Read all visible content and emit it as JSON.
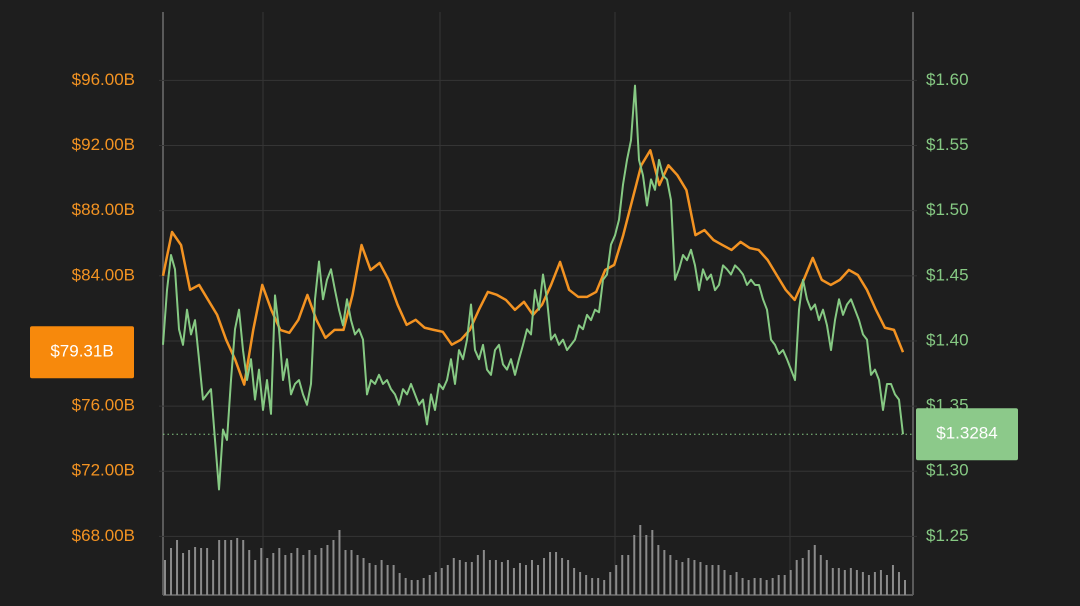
{
  "chart_data": {
    "type": "line",
    "ylim": [
      64.4,
      100.2
    ],
    "yticks": [
      {
        "value": 68,
        "label": "$68.00B"
      },
      {
        "value": 72,
        "label": "$72.00B"
      },
      {
        "value": 76,
        "label": "$76.00B"
      },
      {
        "value": 84,
        "label": "$84.00B"
      },
      {
        "value": 88,
        "label": "$88.00B"
      },
      {
        "value": 92,
        "label": "$92.00B"
      },
      {
        "value": 96,
        "label": "$96.00B"
      }
    ],
    "y2lim": [
      1.205,
      1.6525
    ],
    "y2ticks": [
      {
        "value": 1.25,
        "label": "$1.25"
      },
      {
        "value": 1.3,
        "label": "$1.30"
      },
      {
        "value": 1.35,
        "label": "$1.35"
      },
      {
        "value": 1.4,
        "label": "$1.40"
      },
      {
        "value": 1.45,
        "label": "$1.45"
      },
      {
        "value": 1.5,
        "label": "$1.50"
      },
      {
        "value": 1.55,
        "label": "$1.55"
      },
      {
        "value": 1.6,
        "label": "$1.60"
      }
    ],
    "grid": true,
    "series": [
      {
        "color": "#f39322",
        "axis": "y",
        "last_value_label": "$79.31B",
        "values": [
          84.0,
          86.69,
          85.89,
          83.14,
          83.44,
          82.52,
          81.6,
          80.07,
          78.85,
          77.32,
          80.68,
          83.44,
          81.91,
          80.68,
          80.5,
          81.3,
          82.83,
          81.3,
          80.19,
          80.68,
          80.68,
          82.83,
          85.89,
          84.36,
          84.79,
          83.75,
          82.22,
          80.99,
          81.3,
          80.81,
          80.68,
          80.56,
          79.77,
          80.07,
          80.68,
          81.91,
          83.01,
          82.83,
          82.52,
          81.91,
          82.4,
          81.6,
          82.22,
          83.44,
          84.85,
          83.14,
          82.71,
          82.71,
          83.01,
          84.36,
          84.67,
          86.5,
          88.65,
          90.79,
          91.71,
          89.57,
          90.79,
          90.18,
          89.26,
          86.5,
          86.81,
          86.2,
          85.89,
          85.59,
          86.08,
          85.71,
          85.59,
          84.97,
          84.05,
          83.14,
          82.52,
          83.75,
          85.1,
          83.75,
          83.44,
          83.75,
          84.36,
          84.05,
          83.14,
          81.91,
          80.81,
          80.68,
          79.31
        ]
      },
      {
        "color": "#86c983",
        "axis": "y2",
        "last_value_label": "$1.3284",
        "values": [
          1.397,
          1.439,
          1.466,
          1.455,
          1.409,
          1.397,
          1.424,
          1.405,
          1.416,
          1.386,
          1.355,
          1.359,
          1.363,
          1.324,
          1.286,
          1.332,
          1.324,
          1.37,
          1.409,
          1.424,
          1.393,
          1.37,
          1.386,
          1.355,
          1.378,
          1.347,
          1.37,
          1.344,
          1.435,
          1.409,
          1.37,
          1.386,
          1.359,
          1.367,
          1.37,
          1.359,
          1.351,
          1.367,
          1.432,
          1.461,
          1.432,
          1.447,
          1.455,
          1.439,
          1.424,
          1.412,
          1.432,
          1.416,
          1.405,
          1.409,
          1.401,
          1.359,
          1.37,
          1.367,
          1.374,
          1.367,
          1.37,
          1.363,
          1.359,
          1.351,
          1.363,
          1.359,
          1.367,
          1.359,
          1.351,
          1.355,
          1.336,
          1.359,
          1.347,
          1.367,
          1.363,
          1.37,
          1.386,
          1.367,
          1.393,
          1.386,
          1.401,
          1.428,
          1.393,
          1.386,
          1.397,
          1.378,
          1.374,
          1.393,
          1.397,
          1.382,
          1.378,
          1.386,
          1.374,
          1.386,
          1.397,
          1.409,
          1.405,
          1.439,
          1.424,
          1.451,
          1.432,
          1.401,
          1.405,
          1.397,
          1.401,
          1.393,
          1.397,
          1.401,
          1.412,
          1.409,
          1.42,
          1.416,
          1.424,
          1.422,
          1.447,
          1.451,
          1.474,
          1.481,
          1.493,
          1.52,
          1.539,
          1.554,
          1.596,
          1.539,
          1.527,
          1.504,
          1.524,
          1.516,
          1.539,
          1.527,
          1.524,
          1.508,
          1.447,
          1.455,
          1.466,
          1.462,
          1.47,
          1.458,
          1.439,
          1.455,
          1.447,
          1.451,
          1.439,
          1.443,
          1.458,
          1.455,
          1.451,
          1.458,
          1.455,
          1.451,
          1.443,
          1.447,
          1.443,
          1.443,
          1.432,
          1.424,
          1.401,
          1.397,
          1.39,
          1.393,
          1.386,
          1.378,
          1.37,
          1.424,
          1.447,
          1.432,
          1.424,
          1.428,
          1.416,
          1.424,
          1.412,
          1.393,
          1.416,
          1.432,
          1.42,
          1.428,
          1.432,
          1.424,
          1.416,
          1.405,
          1.401,
          1.374,
          1.378,
          1.37,
          1.347,
          1.367,
          1.367,
          1.359,
          1.355,
          1.3284
        ]
      }
    ],
    "volume": {
      "color": "#8a8a8a",
      "values": [
        35,
        47,
        55,
        42,
        45,
        48,
        47,
        47,
        35,
        55,
        55,
        55,
        57,
        55,
        45,
        35,
        47,
        37,
        42,
        47,
        40,
        42,
        47,
        40,
        45,
        40,
        47,
        50,
        55,
        65,
        45,
        45,
        40,
        37,
        32,
        30,
        35,
        30,
        30,
        22,
        17,
        15,
        15,
        17,
        20,
        23,
        27,
        30,
        37,
        35,
        33,
        33,
        40,
        45,
        35,
        35,
        33,
        35,
        27,
        32,
        30,
        35,
        30,
        37,
        43,
        43,
        37,
        35,
        27,
        23,
        20,
        17,
        17,
        15,
        23,
        30,
        40,
        40,
        60,
        70,
        60,
        65,
        50,
        45,
        40,
        35,
        33,
        37,
        35,
        33,
        30,
        30,
        30,
        25,
        20,
        23,
        17,
        15,
        17,
        17,
        15,
        17,
        20,
        20,
        25,
        35,
        37,
        45,
        50,
        40,
        35,
        27,
        27,
        25,
        27,
        25,
        23,
        20,
        23,
        25,
        20,
        30,
        23,
        15
      ]
    }
  }
}
